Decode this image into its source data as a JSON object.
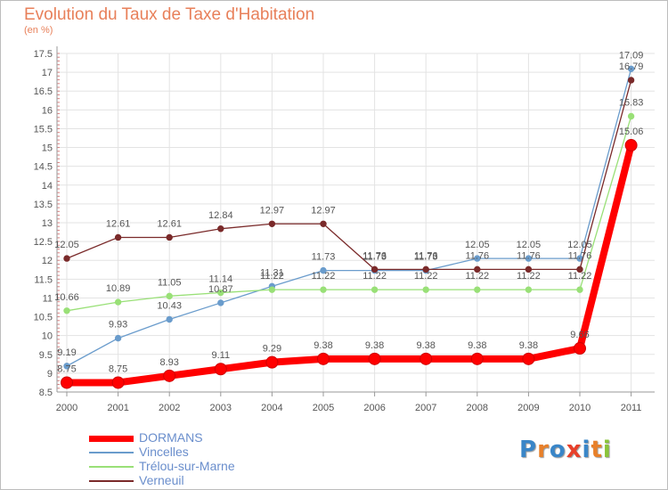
{
  "title": "Evolution du Taux de Taxe d'Habitation",
  "unit_label": "(en %)",
  "logo": {
    "text": "Proxiti",
    "colors": [
      "#3a86c8",
      "#e8802a",
      "#3a86c8",
      "#e8402a",
      "#3a86c8",
      "#e8802a",
      "#8ac43a"
    ]
  },
  "chart_data": {
    "type": "line",
    "title": "Evolution du Taux de Taxe d'Habitation",
    "ylabel": "(en %)",
    "xlabel": "",
    "x": [
      "2000",
      "2001",
      "2002",
      "2003",
      "2004",
      "2005",
      "2006",
      "2007",
      "2008",
      "2009",
      "2010",
      "2011"
    ],
    "ylim": [
      8.5,
      17.5
    ],
    "yticks": [
      "8.5",
      "9",
      "9.5",
      "10",
      "10.5",
      "11",
      "11.5",
      "12",
      "12.5",
      "13",
      "13.5",
      "14",
      "14.5",
      "15",
      "15.5",
      "16",
      "16.5",
      "17",
      "17.5"
    ],
    "grid": true,
    "legend_position": "bottom-left",
    "series": [
      {
        "name": "DORMANS",
        "color": "#ff0000",
        "emphasis": true,
        "values": [
          8.75,
          8.75,
          8.93,
          9.11,
          9.29,
          9.38,
          9.38,
          9.38,
          9.38,
          9.38,
          9.66,
          15.06
        ],
        "labels": [
          "8.75",
          "8.75",
          "8.93",
          "9.11",
          "9.29",
          "9.38",
          "9.38",
          "9.38",
          "9.38",
          "9.38",
          "9.66",
          "15.06"
        ]
      },
      {
        "name": "Vincelles",
        "color": "#6a9ccc",
        "values": [
          9.19,
          9.93,
          10.43,
          10.87,
          11.31,
          11.73,
          11.73,
          11.73,
          12.05,
          12.05,
          12.05,
          17.09
        ],
        "labels": [
          "9.19",
          "9.93",
          "10.43",
          "10.87",
          "11.31",
          "11.73",
          "11.73",
          "11.73",
          "12.05",
          "12.05",
          "12.05",
          "17.09"
        ]
      },
      {
        "name": "Trélou-sur-Marne",
        "color": "#99e077",
        "values": [
          10.66,
          10.89,
          11.05,
          11.14,
          11.22,
          11.22,
          11.22,
          11.22,
          11.22,
          11.22,
          11.22,
          15.83
        ],
        "labels": [
          "10.66",
          "10.89",
          "11.05",
          "11.14",
          "11.22",
          "11.22",
          "11.22",
          "11.22",
          "11.22",
          "11.22",
          "11.22",
          "15.83"
        ]
      },
      {
        "name": "Verneuil",
        "color": "#7a2a2a",
        "values": [
          12.05,
          12.61,
          12.61,
          12.84,
          12.97,
          12.97,
          11.76,
          11.76,
          11.76,
          11.76,
          11.76,
          16.79
        ],
        "labels": [
          "12.05",
          "12.61",
          "12.61",
          "12.84",
          "12.97",
          "12.97",
          "11.76",
          "11.76",
          "11.76",
          "11.76",
          "11.76",
          "16.79"
        ]
      }
    ]
  }
}
